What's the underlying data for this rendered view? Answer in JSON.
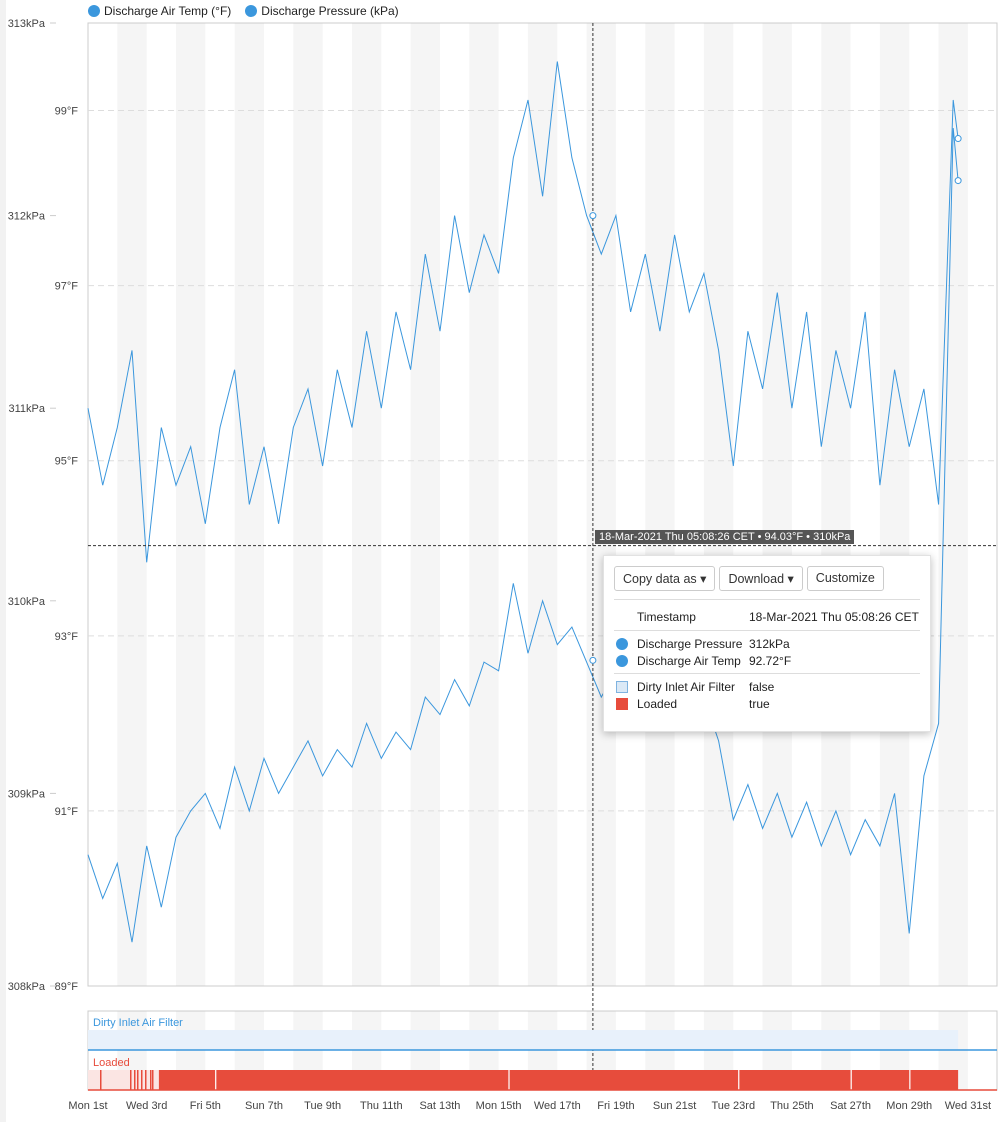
{
  "chart_data": {
    "type": "line",
    "legend": [
      {
        "name": "Discharge Air Temp (°F)",
        "color": "#3b97dd"
      },
      {
        "name": "Discharge Pressure (kPa)",
        "color": "#3b97dd"
      }
    ],
    "legend_position": "top-left",
    "y_left_kpa": {
      "range": [
        308,
        313
      ],
      "ticks": [
        "313kPa",
        "312kPa",
        "311kPa",
        "310kPa",
        "309kPa",
        "308kPa"
      ]
    },
    "y_left_f": {
      "range": [
        89,
        100
      ],
      "ticks": [
        "99°F",
        "97°F",
        "95°F",
        "93°F",
        "91°F",
        "89°F"
      ]
    },
    "x_range": [
      "2021-03-01T00:00",
      "2021-03-31T12:00"
    ],
    "x_ticks": [
      {
        "date": "2021-03-01",
        "label": "Mon 1st"
      },
      {
        "date": "2021-03-03",
        "label": "Wed 3rd"
      },
      {
        "date": "2021-03-05",
        "label": "Fri 5th"
      },
      {
        "date": "2021-03-07",
        "label": "Sun 7th"
      },
      {
        "date": "2021-03-09",
        "label": "Tue 9th"
      },
      {
        "date": "2021-03-11",
        "label": "Thu 11th"
      },
      {
        "date": "2021-03-13",
        "label": "Sat 13th"
      },
      {
        "date": "2021-03-15",
        "label": "Mon 15th"
      },
      {
        "date": "2021-03-17",
        "label": "Wed 17th"
      },
      {
        "date": "2021-03-19",
        "label": "Fri 19th"
      },
      {
        "date": "2021-03-21",
        "label": "Sun 21st"
      },
      {
        "date": "2021-03-23",
        "label": "Tue 23rd"
      },
      {
        "date": "2021-03-25",
        "label": "Thu 25th"
      },
      {
        "date": "2021-03-27",
        "label": "Sat 27th"
      },
      {
        "date": "2021-03-29",
        "label": "Mon 29th"
      },
      {
        "date": "2021-03-31",
        "label": "Wed 31st"
      }
    ],
    "x": [
      "2021-03-01T00:00",
      "2021-03-01T12:00",
      "2021-03-02T00:00",
      "2021-03-02T12:00",
      "2021-03-03T00:00",
      "2021-03-03T12:00",
      "2021-03-04T00:00",
      "2021-03-04T12:00",
      "2021-03-05T00:00",
      "2021-03-05T12:00",
      "2021-03-06T00:00",
      "2021-03-06T12:00",
      "2021-03-07T00:00",
      "2021-03-07T12:00",
      "2021-03-08T00:00",
      "2021-03-08T12:00",
      "2021-03-09T00:00",
      "2021-03-09T12:00",
      "2021-03-10T00:00",
      "2021-03-10T12:00",
      "2021-03-11T00:00",
      "2021-03-11T12:00",
      "2021-03-12T00:00",
      "2021-03-12T12:00",
      "2021-03-13T00:00",
      "2021-03-13T12:00",
      "2021-03-14T00:00",
      "2021-03-14T12:00",
      "2021-03-15T00:00",
      "2021-03-15T12:00",
      "2021-03-16T00:00",
      "2021-03-16T12:00",
      "2021-03-17T00:00",
      "2021-03-17T12:00",
      "2021-03-18T00:00",
      "2021-03-18T12:00",
      "2021-03-19T00:00",
      "2021-03-19T12:00",
      "2021-03-20T00:00",
      "2021-03-20T12:00",
      "2021-03-21T00:00",
      "2021-03-21T12:00",
      "2021-03-22T00:00",
      "2021-03-22T12:00",
      "2021-03-23T00:00",
      "2021-03-23T12:00",
      "2021-03-24T00:00",
      "2021-03-24T12:00",
      "2021-03-25T00:00",
      "2021-03-25T12:00",
      "2021-03-26T00:00",
      "2021-03-26T12:00",
      "2021-03-27T00:00",
      "2021-03-27T12:00",
      "2021-03-28T00:00",
      "2021-03-28T12:00",
      "2021-03-29T00:00",
      "2021-03-29T12:00",
      "2021-03-30T00:00",
      "2021-03-30T12:00",
      "2021-03-30T16:00"
    ],
    "series": [
      {
        "name": "Discharge Pressure",
        "unit": "kPa",
        "axis": "kpa",
        "color": "#3b97dd",
        "values": [
          311.0,
          310.6,
          310.9,
          311.3,
          310.2,
          310.9,
          310.6,
          310.8,
          310.4,
          310.9,
          311.2,
          310.5,
          310.8,
          310.4,
          310.9,
          311.1,
          310.7,
          311.2,
          310.9,
          311.4,
          311.0,
          311.5,
          311.2,
          311.8,
          311.4,
          312.0,
          311.6,
          311.9,
          311.7,
          312.3,
          312.6,
          312.1,
          312.8,
          312.3,
          312.0,
          311.8,
          312.0,
          311.5,
          311.8,
          311.4,
          311.9,
          311.5,
          311.7,
          311.3,
          310.7,
          311.4,
          311.1,
          311.6,
          311.0,
          311.5,
          310.8,
          311.3,
          311.0,
          311.5,
          310.6,
          311.2,
          310.8,
          311.1,
          310.5,
          312.6,
          312.4
        ]
      },
      {
        "name": "Discharge Air Temp",
        "unit": "°F",
        "axis": "f",
        "color": "#3b97dd",
        "values": [
          90.5,
          90.0,
          90.4,
          89.5,
          90.6,
          89.9,
          90.7,
          91.0,
          91.2,
          90.8,
          91.5,
          91.0,
          91.6,
          91.2,
          91.5,
          91.8,
          91.4,
          91.7,
          91.5,
          92.0,
          91.6,
          91.9,
          91.7,
          92.3,
          92.1,
          92.5,
          92.2,
          92.7,
          92.6,
          93.6,
          92.8,
          93.4,
          92.9,
          93.1,
          92.7,
          92.3,
          92.6,
          92.2,
          92.5,
          92.1,
          92.4,
          92.0,
          92.3,
          91.8,
          90.9,
          91.3,
          90.8,
          91.2,
          90.7,
          91.1,
          90.6,
          91.0,
          90.5,
          90.9,
          90.6,
          91.2,
          89.6,
          91.4,
          92.0,
          98.8,
          98.2
        ]
      }
    ],
    "state_tracks": [
      {
        "name": "Dirty Inlet Air Filter",
        "color": "#3b97dd",
        "fill": "#e8f1fb",
        "value": "false",
        "range": [
          "2021-03-01T00:00",
          "2021-03-30T16:00"
        ]
      },
      {
        "name": "Loaded",
        "color": "#e74c3c",
        "fill": "#fbe5e3",
        "true_intervals": [
          [
            "2021-03-03T10:00",
            "2021-03-05T08:00"
          ],
          [
            "2021-03-05T09:00",
            "2021-03-15T08:00"
          ],
          [
            "2021-03-15T09:00",
            "2021-03-23T04:00"
          ],
          [
            "2021-03-23T05:00",
            "2021-03-27T00:00"
          ],
          [
            "2021-03-27T01:00",
            "2021-03-29T00:00"
          ],
          [
            "2021-03-29T01:00",
            "2021-03-30T16:00"
          ]
        ]
      }
    ],
    "crosshair": {
      "time": "2021-03-18T05:08",
      "temp_f": 94.03
    }
  },
  "crosshair_label": "18-Mar-2021 Thu 05:08:26 CET • 94.03°F • 310kPa",
  "tooltip": {
    "buttons": {
      "copy": "Copy data as",
      "download": "Download",
      "customize": "Customize"
    },
    "timestamp_label": "Timestamp",
    "timestamp_value": "18-Mar-2021 Thu 05:08:26 CET",
    "rows": [
      {
        "label": "Discharge Pressure",
        "value": "312kPa"
      },
      {
        "label": "Discharge Air Temp",
        "value": "92.72°F"
      },
      {
        "label": "Dirty Inlet Air Filter",
        "value": "false"
      },
      {
        "label": "Loaded",
        "value": "true"
      }
    ]
  }
}
